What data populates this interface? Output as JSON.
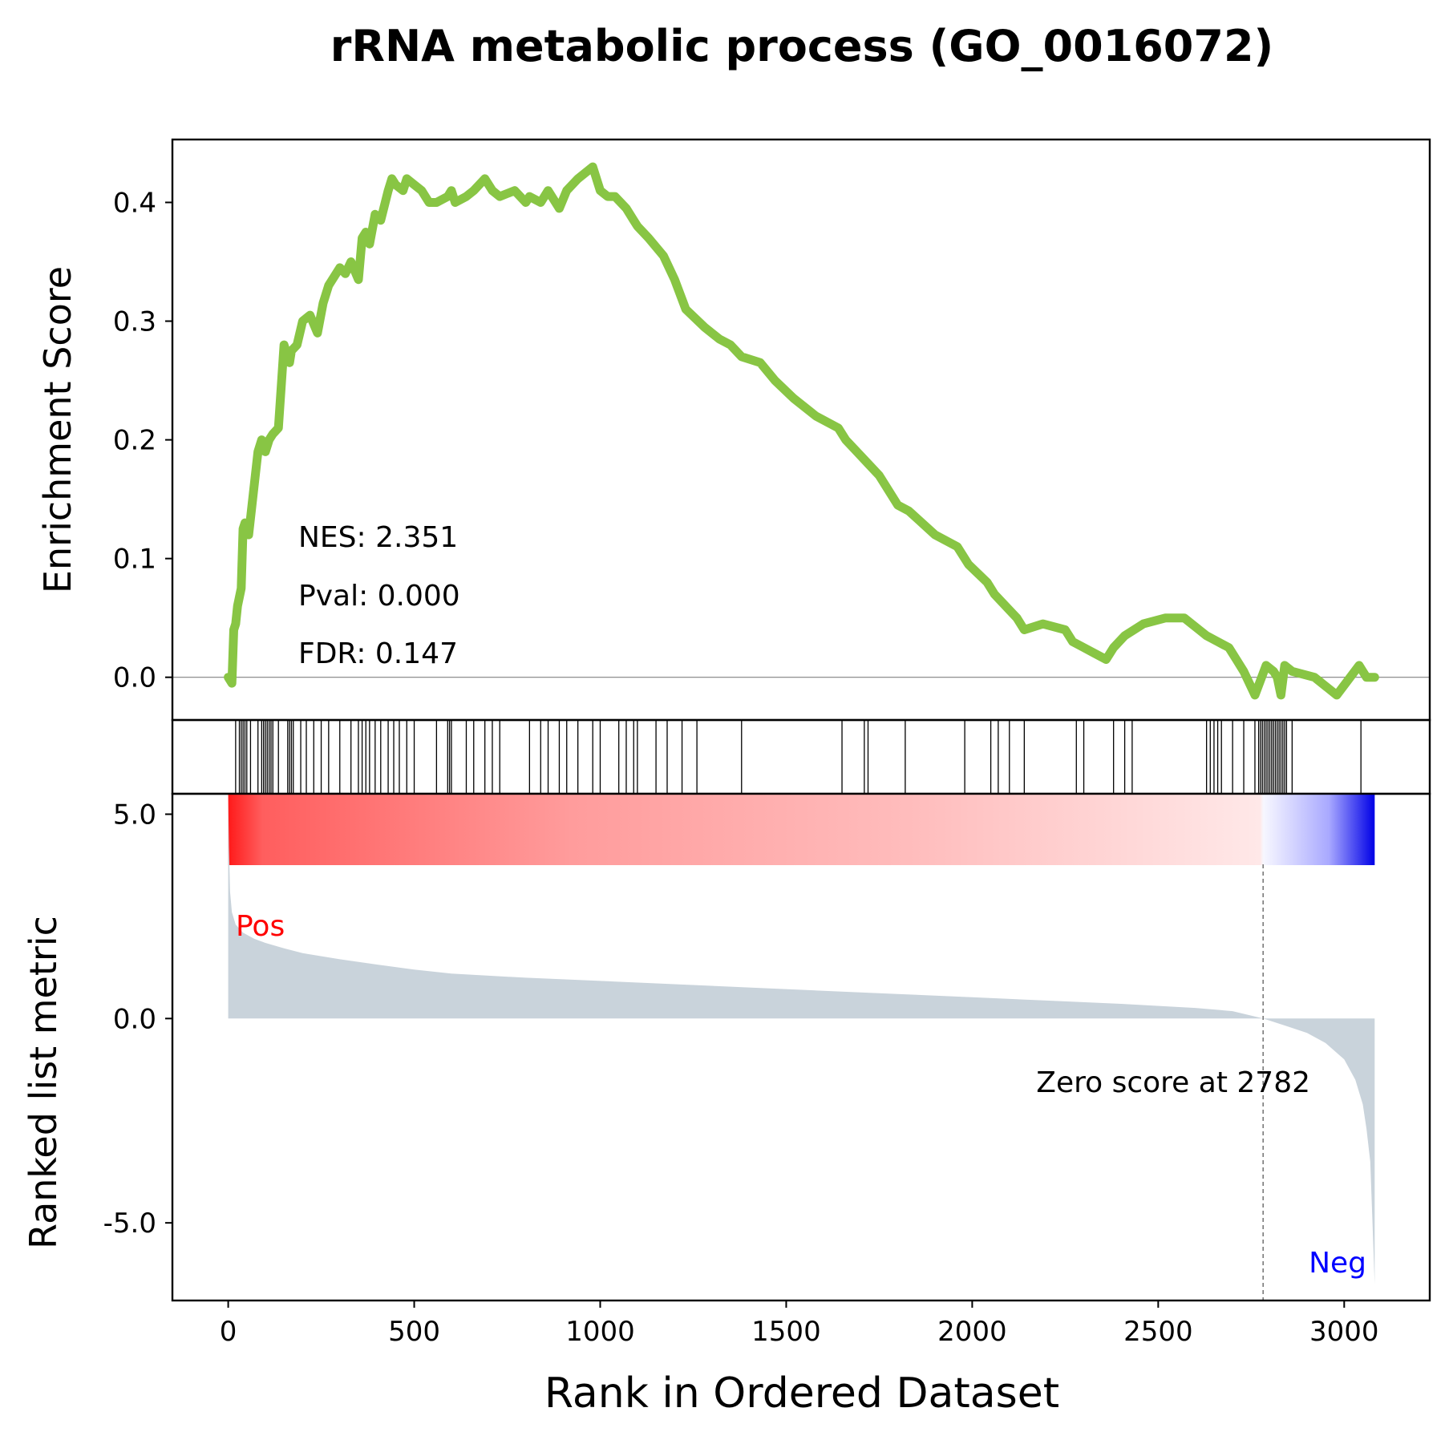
{
  "title": "rRNA metabolic process (GO_0016072)",
  "stats": {
    "nes": "NES: 2.351",
    "pval": "Pval: 0.000",
    "fdr": "FDR: 0.147"
  },
  "labels": {
    "ylabel_top": "Enrichment Score",
    "ylabel_bottom": "Ranked list metric",
    "xlabel": "Rank in Ordered Dataset",
    "pos": "Pos",
    "neg": "Neg",
    "zero_score": "Zero score at 2782"
  },
  "colors": {
    "es_line": "#88C544",
    "metric_fill": "#C9D3DB",
    "pos_color": "#FF0000",
    "neg_color": "#0000FF",
    "hit_line": "#000000"
  },
  "chart_data": [
    {
      "type": "line",
      "name": "enrichment",
      "ylim": [
        -0.036,
        0.453
      ],
      "xlim": [
        -150,
        3230
      ],
      "x_ticks": [
        0,
        500,
        1000,
        1500,
        2000,
        2500,
        3000
      ],
      "y_ticks": [
        0.0,
        0.1,
        0.2,
        0.3,
        0.4
      ],
      "y_tick_labels": [
        "0.0",
        "0.1",
        "0.2",
        "0.3",
        "0.4"
      ],
      "x": [
        0,
        10,
        15,
        20,
        25,
        35,
        40,
        45,
        55,
        80,
        90,
        100,
        110,
        120,
        135,
        150,
        160,
        165,
        170,
        185,
        200,
        220,
        240,
        255,
        270,
        300,
        315,
        330,
        350,
        360,
        370,
        380,
        395,
        410,
        430,
        440,
        450,
        470,
        480,
        500,
        520,
        540,
        560,
        590,
        600,
        610,
        640,
        660,
        690,
        710,
        730,
        770,
        800,
        810,
        840,
        860,
        890,
        910,
        940,
        980,
        1000,
        1020,
        1040,
        1070,
        1090,
        1100,
        1130,
        1170,
        1200,
        1230,
        1280,
        1320,
        1350,
        1380,
        1430,
        1470,
        1520,
        1580,
        1640,
        1660,
        1690,
        1720,
        1750,
        1800,
        1830,
        1900,
        1960,
        1990,
        2040,
        2060,
        2090,
        2120,
        2140,
        2190,
        2250,
        2270,
        2300,
        2330,
        2360,
        2380,
        2410,
        2460,
        2520,
        2570,
        2610,
        2630,
        2660,
        2690,
        2710,
        2730,
        2760,
        2790,
        2810,
        2820,
        2830,
        2840,
        2860,
        2920,
        2980,
        3040,
        3050,
        3060,
        3082
      ],
      "y": [
        0.0,
        -0.005,
        0.04,
        0.045,
        0.06,
        0.075,
        0.125,
        0.13,
        0.12,
        0.19,
        0.2,
        0.19,
        0.2,
        0.205,
        0.21,
        0.28,
        0.27,
        0.265,
        0.275,
        0.28,
        0.3,
        0.305,
        0.29,
        0.315,
        0.33,
        0.345,
        0.34,
        0.35,
        0.335,
        0.37,
        0.375,
        0.365,
        0.39,
        0.385,
        0.41,
        0.42,
        0.415,
        0.41,
        0.42,
        0.415,
        0.41,
        0.4,
        0.4,
        0.405,
        0.41,
        0.4,
        0.405,
        0.41,
        0.42,
        0.41,
        0.405,
        0.41,
        0.4,
        0.405,
        0.4,
        0.41,
        0.395,
        0.41,
        0.42,
        0.43,
        0.41,
        0.405,
        0.405,
        0.395,
        0.385,
        0.38,
        0.37,
        0.355,
        0.335,
        0.31,
        0.295,
        0.285,
        0.28,
        0.27,
        0.265,
        0.25,
        0.235,
        0.22,
        0.21,
        0.2,
        0.19,
        0.18,
        0.17,
        0.145,
        0.14,
        0.12,
        0.11,
        0.095,
        0.08,
        0.07,
        0.06,
        0.05,
        0.04,
        0.045,
        0.04,
        0.03,
        0.025,
        0.02,
        0.015,
        0.025,
        0.035,
        0.045,
        0.05,
        0.05,
        0.04,
        0.035,
        0.03,
        0.025,
        0.015,
        0.005,
        -0.015,
        0.01,
        0.005,
        0.0,
        -0.015,
        0.01,
        0.005,
        0.0,
        -0.015,
        0.01,
        0.005,
        0.0,
        0.0
      ]
    },
    {
      "type": "line",
      "name": "gene-set hits",
      "hits": [
        20,
        30,
        35,
        40,
        45,
        50,
        60,
        80,
        90,
        95,
        100,
        105,
        110,
        115,
        120,
        135,
        160,
        165,
        170,
        175,
        195,
        210,
        230,
        250,
        270,
        300,
        330,
        350,
        360,
        370,
        380,
        395,
        410,
        430,
        445,
        460,
        480,
        500,
        560,
        590,
        595,
        600,
        640,
        660,
        690,
        710,
        730,
        810,
        840,
        860,
        890,
        910,
        940,
        980,
        1000,
        1050,
        1070,
        1090,
        1100,
        1150,
        1180,
        1220,
        1260,
        1380,
        1650,
        1710,
        1720,
        1820,
        1980,
        2050,
        2070,
        2100,
        2140,
        2280,
        2300,
        2380,
        2410,
        2430,
        2630,
        2640,
        2650,
        2660,
        2670,
        2700,
        2730,
        2760,
        2770,
        2775,
        2780,
        2785,
        2790,
        2795,
        2800,
        2805,
        2810,
        2815,
        2820,
        2825,
        2830,
        2835,
        2840,
        2845,
        2860,
        3045
      ]
    },
    {
      "type": "area",
      "name": "ranked metric",
      "ylim": [
        -6.9,
        5.5
      ],
      "y_ticks": [
        -5.0,
        0.0,
        5.0
      ],
      "y_tick_labels": [
        "-5.0",
        "0.0",
        "5.0"
      ],
      "zero_cross": 2782,
      "x": [
        0,
        2,
        5,
        10,
        20,
        40,
        70,
        100,
        150,
        200,
        300,
        400,
        500,
        600,
        800,
        1000,
        1200,
        1400,
        1600,
        1800,
        2000,
        2200,
        2400,
        2600,
        2700,
        2782,
        2850,
        2900,
        2950,
        3000,
        3030,
        3050,
        3060,
        3070,
        3076,
        3082
      ],
      "y": [
        5.4,
        4.2,
        3.1,
        2.6,
        2.3,
        2.1,
        1.95,
        1.85,
        1.72,
        1.6,
        1.45,
        1.32,
        1.2,
        1.1,
        1.0,
        0.92,
        0.84,
        0.76,
        0.68,
        0.6,
        0.52,
        0.44,
        0.36,
        0.26,
        0.18,
        0.0,
        -0.2,
        -0.35,
        -0.6,
        -1.0,
        -1.5,
        -2.1,
        -2.7,
        -3.5,
        -5.0,
        -6.5
      ]
    }
  ]
}
